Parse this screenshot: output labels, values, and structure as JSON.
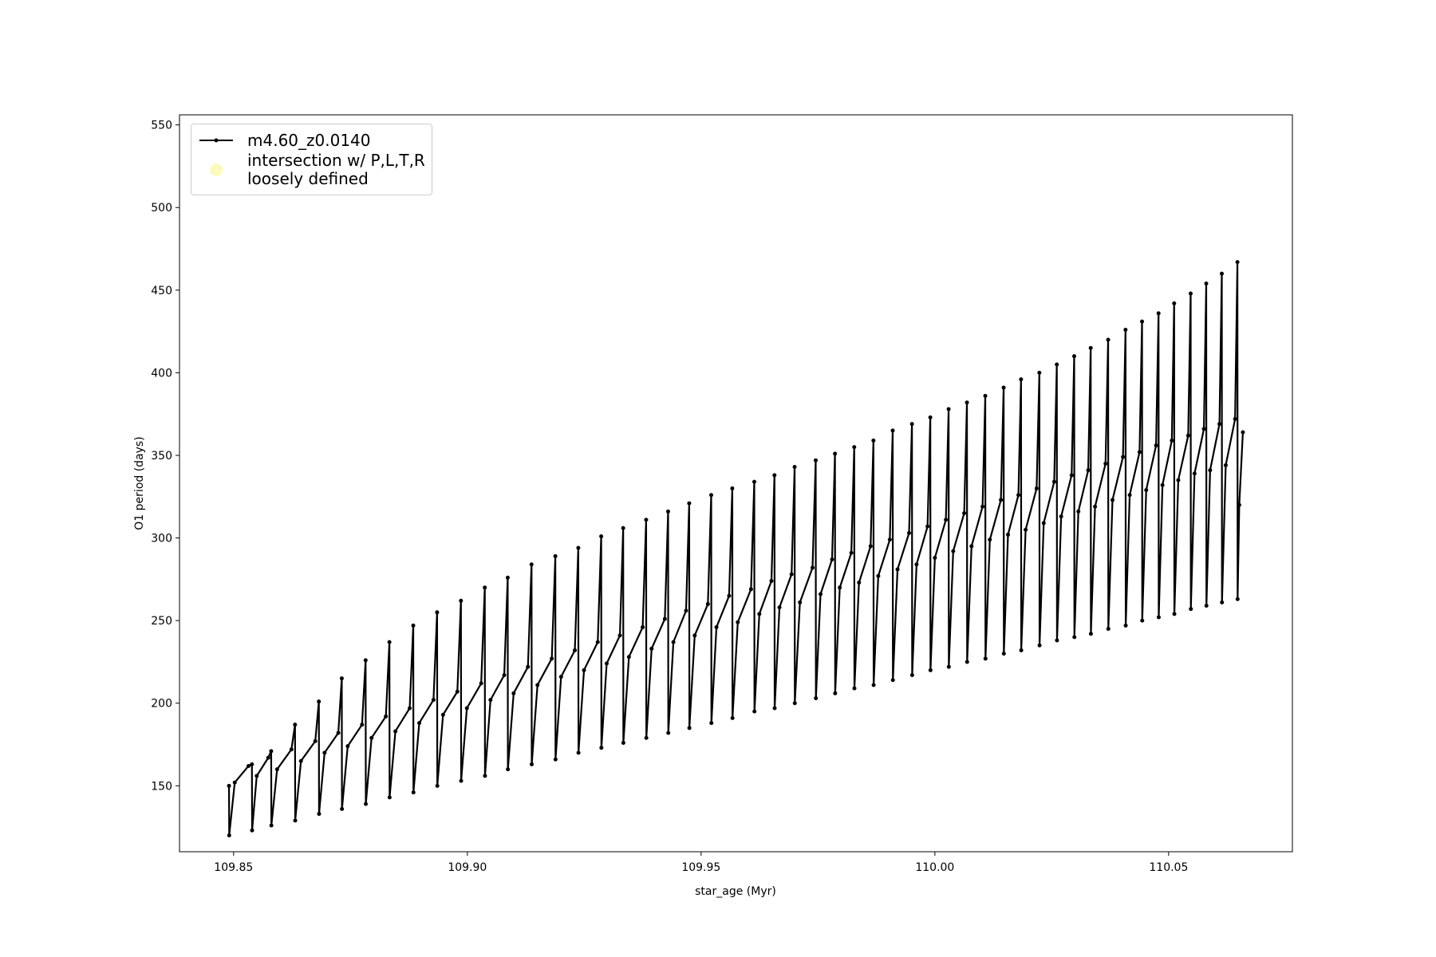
{
  "chart_data": {
    "type": "line",
    "xlabel": "star_age (Myr)",
    "ylabel": "O1 period (days)",
    "xlim": [
      109.83843,
      110.07647
    ],
    "ylim": [
      110.1,
      556.1
    ],
    "xticks": [
      109.85,
      {
        "value": 109.9,
        "label": "109.90"
      },
      109.95,
      {
        "value": 110.0,
        "label": "110.00"
      },
      110.05
    ],
    "yticks": [
      150,
      200,
      250,
      300,
      350,
      400,
      450,
      500,
      550
    ],
    "grid": false,
    "legend": "upper left",
    "x": [
      109.84902,
      109.84906,
      109.85025,
      109.85319,
      109.85392,
      109.85396,
      109.85495,
      109.85742,
      109.85804,
      109.85808,
      109.85931,
      109.86237,
      109.86314,
      109.86318,
      109.86441,
      109.86747,
      109.86824,
      109.86828,
      109.86946,
      109.8724,
      109.87314,
      109.87318,
      109.87441,
      109.87747,
      109.87824,
      109.87828,
      109.87951,
      109.88257,
      109.88333,
      109.88337,
      109.88461,
      109.88767,
      109.88843,
      109.88847,
      109.88971,
      109.89276,
      109.89353,
      109.89357,
      109.8948,
      109.89786,
      109.89863,
      109.89867,
      109.8999,
      109.90296,
      109.90373,
      109.90377,
      109.90495,
      109.90789,
      109.90863,
      109.90867,
      109.9099,
      109.91296,
      109.91373,
      109.91377,
      109.915,
      109.91806,
      109.91882,
      109.91886,
      109.92005,
      109.92299,
      109.92373,
      109.92377,
      109.92495,
      109.92789,
      109.92863,
      109.92867,
      109.9298,
      109.93263,
      109.93333,
      109.93337,
      109.93456,
      109.9375,
      109.93824,
      109.93828,
      109.93941,
      109.94224,
      109.94294,
      109.94298,
      109.94407,
      109.94678,
      109.94745,
      109.94749,
      109.94863,
      109.95145,
      109.95216,
      109.9522,
      109.95328,
      109.95599,
      109.95667,
      109.95671,
      109.95784,
      109.96067,
      109.96137,
      109.96141,
      109.96245,
      109.96504,
      109.96569,
      109.96573,
      109.96676,
      109.96935,
      109.97,
      109.97004,
      109.97113,
      109.97383,
      109.97451,
      109.97455,
      109.97554,
      109.97801,
      109.97863,
      109.97867,
      109.97966,
      109.98213,
      109.98275,
      109.98279,
      109.98377,
      109.98625,
      109.98686,
      109.9869,
      109.98789,
      109.99036,
      109.99098,
      109.99102,
      109.99201,
      109.99448,
      109.9951,
      109.99514,
      109.99608,
      109.99843,
      109.99902,
      109.99906,
      110.0,
      110.00235,
      110.00294,
      110.00298,
      110.00392,
      110.00627,
      110.00686,
      110.0069,
      110.00784,
      110.0102,
      110.01078,
      110.01082,
      110.01176,
      110.01412,
      110.01471,
      110.01475,
      110.01564,
      110.01787,
      110.01843,
      110.01847,
      110.01941,
      110.02176,
      110.02235,
      110.02239,
      110.02328,
      110.02552,
      110.02608,
      110.02612,
      110.02701,
      110.02925,
      110.0298,
      110.02984,
      110.03069,
      110.0328,
      110.03333,
      110.03337,
      110.03426,
      110.0365,
      110.03706,
      110.0371,
      110.03799,
      110.04023,
      110.04078,
      110.04082,
      110.04167,
      110.04378,
      110.04431,
      110.04435,
      110.0452,
      110.04731,
      110.04784,
      110.04788,
      110.04868,
      110.05068,
      110.05118,
      110.05122,
      110.05206,
      110.05418,
      110.05471,
      110.05475,
      110.05554,
      110.05754,
      110.05804,
      110.05808,
      110.05887,
      110.06087,
      110.06137,
      110.06141,
      110.06221,
      110.06421,
      110.06471,
      110.06475,
      110.0651,
      110.06588
    ],
    "series": [
      {
        "name": "m4.60_z0.0140",
        "color": "#000000",
        "values": [
          150,
          120,
          152,
          162,
          163,
          123,
          156,
          167,
          171,
          126,
          160,
          172,
          187,
          129,
          165,
          177,
          201,
          133,
          170,
          182,
          215,
          136,
          174,
          187,
          226,
          139,
          179,
          192,
          237,
          143,
          183,
          197,
          247,
          146,
          188,
          202,
          255,
          150,
          193,
          207,
          262,
          153,
          197,
          212,
          270,
          156,
          202,
          217,
          276,
          160,
          206,
          222,
          284,
          163,
          211,
          227,
          289,
          166,
          216,
          232,
          294,
          170,
          220,
          237,
          301,
          173,
          224,
          241,
          306,
          176,
          228,
          246,
          311,
          179,
          233,
          251,
          316,
          182,
          237,
          256,
          321,
          185,
          241,
          260,
          326,
          188,
          246,
          265,
          330,
          191,
          249,
          269,
          334,
          195,
          254,
          274,
          338,
          197,
          258,
          278,
          343,
          200,
          261,
          282,
          347,
          203,
          266,
          287,
          351,
          206,
          270,
          291,
          355,
          209,
          273,
          295,
          359,
          211,
          277,
          299,
          365,
          214,
          281,
          303,
          369,
          217,
          284,
          307,
          373,
          220,
          288,
          311,
          378,
          222,
          292,
          315,
          382,
          225,
          295,
          319,
          386,
          227,
          299,
          323,
          391,
          230,
          302,
          326,
          396,
          232,
          305,
          330,
          400,
          235,
          309,
          334,
          405,
          238,
          313,
          338,
          410,
          240,
          316,
          341,
          415,
          242,
          319,
          345,
          420,
          245,
          323,
          349,
          426,
          247,
          326,
          352,
          431,
          250,
          329,
          356,
          436,
          252,
          332,
          359,
          442,
          254,
          335,
          362,
          448,
          257,
          339,
          366,
          454,
          259,
          341,
          369,
          460,
          261,
          344,
          372,
          467,
          263,
          320,
          364
        ]
      },
      {
        "name": "intersection w/ P,L,T,R\nloosely defined",
        "color": "#fbfbbd"
      }
    ]
  }
}
